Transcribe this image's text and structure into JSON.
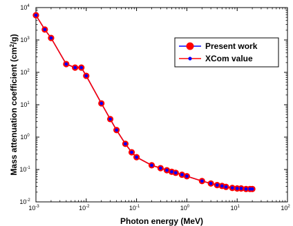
{
  "chart_data": {
    "type": "line",
    "title": "",
    "xlabel": "Photon energy (MeV)",
    "ylabel_main": "Mass attenuation coefficient (cm",
    "ylabel_sup": "2",
    "ylabel_end": "/g)",
    "x_scale": "log",
    "y_scale": "log",
    "xlim": [
      0.001,
      100
    ],
    "ylim": [
      0.01,
      10000
    ],
    "x_ticks": [
      {
        "base": "10",
        "exp": "-3"
      },
      {
        "base": "10",
        "exp": "-2"
      },
      {
        "base": "10",
        "exp": "-1"
      },
      {
        "base": "10",
        "exp": "0"
      },
      {
        "base": "10",
        "exp": "1"
      },
      {
        "base": "10",
        "exp": "2"
      }
    ],
    "y_ticks": [
      {
        "base": "10",
        "exp": "-2"
      },
      {
        "base": "10",
        "exp": "-1"
      },
      {
        "base": "10",
        "exp": "0"
      },
      {
        "base": "10",
        "exp": "1"
      },
      {
        "base": "10",
        "exp": "2"
      },
      {
        "base": "10",
        "exp": "3"
      },
      {
        "base": "10",
        "exp": "4"
      }
    ],
    "grid": false,
    "legend_position": "top-right",
    "x": [
      0.001,
      0.0015,
      0.002,
      0.004,
      0.006,
      0.008,
      0.01,
      0.02,
      0.03,
      0.04,
      0.06,
      0.08,
      0.1,
      0.2,
      0.3,
      0.4,
      0.5,
      0.6,
      0.8,
      1.0,
      2.0,
      3.0,
      4.0,
      5.0,
      6.0,
      8.0,
      10.0,
      12.0,
      15.0,
      18.0,
      20.0
    ],
    "series": [
      {
        "name": "Present work",
        "color": "#ff0000",
        "marker": "large-red-circle",
        "values": [
          5800,
          2100,
          1150,
          180,
          140,
          140,
          78,
          11.0,
          3.6,
          1.65,
          0.62,
          0.34,
          0.24,
          0.135,
          0.11,
          0.095,
          0.085,
          0.079,
          0.069,
          0.062,
          0.044,
          0.037,
          0.033,
          0.031,
          0.029,
          0.027,
          0.026,
          0.026,
          0.025,
          0.025,
          0.025
        ]
      },
      {
        "name": "XCom value",
        "color": "#0000ff",
        "marker": "small-blue-dot",
        "values": [
          5800,
          2100,
          1150,
          180,
          140,
          140,
          78,
          11.0,
          3.6,
          1.65,
          0.62,
          0.34,
          0.24,
          0.135,
          0.11,
          0.095,
          0.085,
          0.079,
          0.069,
          0.062,
          0.044,
          0.037,
          0.033,
          0.031,
          0.029,
          0.027,
          0.026,
          0.026,
          0.025,
          0.025,
          0.025
        ]
      }
    ]
  }
}
